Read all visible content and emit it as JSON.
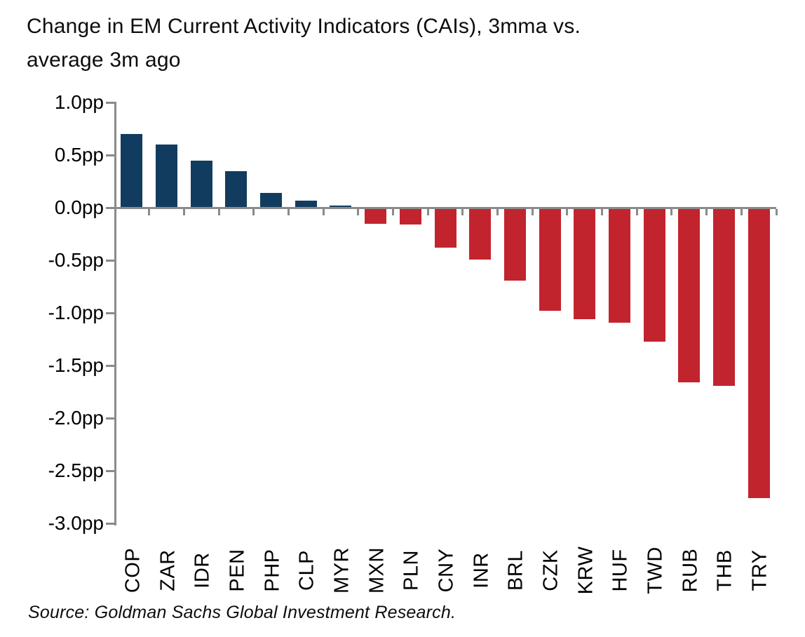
{
  "title_lines": [
    "Change in EM Current Activity Indicators (CAIs), 3mma vs.",
    "average 3m ago"
  ],
  "source": "Source: Goldman Sachs Global Investment Research.",
  "colors": {
    "positive_bar": "#123C5F",
    "negative_bar": "#C2242E",
    "axis": "#8A8A8A",
    "text": "#000000"
  },
  "chart_data": {
    "type": "bar",
    "title": "Change in EM Current Activity Indicators (CAIs), 3mma vs. average 3m ago",
    "unit": "pp",
    "categories": [
      "COP",
      "ZAR",
      "IDR",
      "PEN",
      "PHP",
      "CLP",
      "MYR",
      "MXN",
      "PLN",
      "CNY",
      "INR",
      "BRL",
      "CZK",
      "KRW",
      "HUF",
      "TWD",
      "RUB",
      "THB",
      "TRY"
    ],
    "values": [
      0.7,
      0.6,
      0.45,
      0.35,
      0.14,
      0.07,
      0.02,
      -0.15,
      -0.16,
      -0.38,
      -0.49,
      -0.69,
      -0.98,
      -1.06,
      -1.09,
      -1.27,
      -1.66,
      -1.69,
      -2.76
    ],
    "xlabel": "",
    "ylabel": "",
    "ylim": [
      -3.0,
      1.0
    ],
    "ytick_step": 0.5,
    "ytick_labels": [
      "1.0pp",
      "0.5pp",
      "0.0pp",
      "-0.5pp",
      "-1.0pp",
      "-1.5pp",
      "-2.0pp",
      "-2.5pp",
      "-3.0pp"
    ],
    "grid": false,
    "legend": false,
    "positive_color": "#123C5F",
    "negative_color": "#C2242E"
  }
}
